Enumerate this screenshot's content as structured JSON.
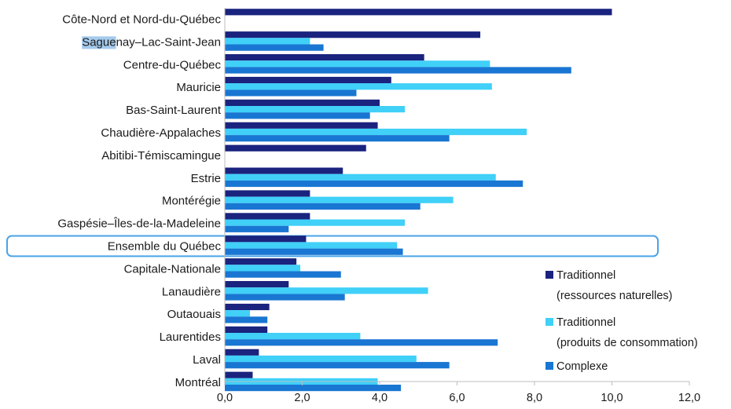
{
  "chart_data": {
    "type": "bar",
    "orientation": "horizontal",
    "categories": [
      "Côte-Nord et Nord-du-Québec",
      "Saguenay–Lac-Saint-Jean",
      "Centre-du-Québec",
      "Mauricie",
      "Bas-Saint-Laurent",
      "Chaudière-Appalaches",
      "Abitibi-Témiscamingue",
      "Estrie",
      "Montérégie",
      "Gaspésie–Îles-de-la-Madeleine",
      "Ensemble du Québec",
      "Capitale-Nationale",
      "Lanaudière",
      "Outaouais",
      "Laurentides",
      "Laval",
      "Montréal"
    ],
    "series": [
      {
        "name_lines": [
          "Traditionnel",
          "(ressources naturelles)"
        ],
        "color": "#1a237e",
        "values": [
          10.0,
          6.6,
          5.15,
          4.3,
          4.0,
          3.95,
          3.65,
          3.05,
          2.2,
          2.2,
          2.1,
          1.85,
          1.65,
          1.15,
          1.1,
          0.88,
          0.72
        ]
      },
      {
        "name_lines": [
          "Traditionnel",
          "(produits de consommation)"
        ],
        "color": "#40d0f8",
        "values": [
          0,
          2.2,
          6.85,
          6.9,
          4.65,
          7.8,
          0,
          7.0,
          5.9,
          4.65,
          4.45,
          1.95,
          5.25,
          0.65,
          3.5,
          4.95,
          3.95
        ]
      },
      {
        "name_lines": [
          "Complexe"
        ],
        "color": "#1976d2",
        "values": [
          0,
          2.55,
          8.95,
          3.4,
          3.75,
          5.8,
          0,
          7.7,
          5.05,
          1.65,
          4.6,
          3.0,
          3.1,
          1.1,
          7.05,
          5.8,
          4.55
        ]
      }
    ],
    "xlim": [
      0,
      12
    ],
    "xticks": [
      0,
      2,
      4,
      6,
      8,
      10,
      12
    ],
    "xtick_labels": [
      "0,0",
      "2,0",
      "4,0",
      "6,0",
      "8,0",
      "10,0",
      "12,0"
    ],
    "highlighted_category": "Ensemble du Québec",
    "highlight_color": "#4aa3e8",
    "selected_text_fragment": "Sague",
    "legend_position": "right",
    "grid": false
  }
}
